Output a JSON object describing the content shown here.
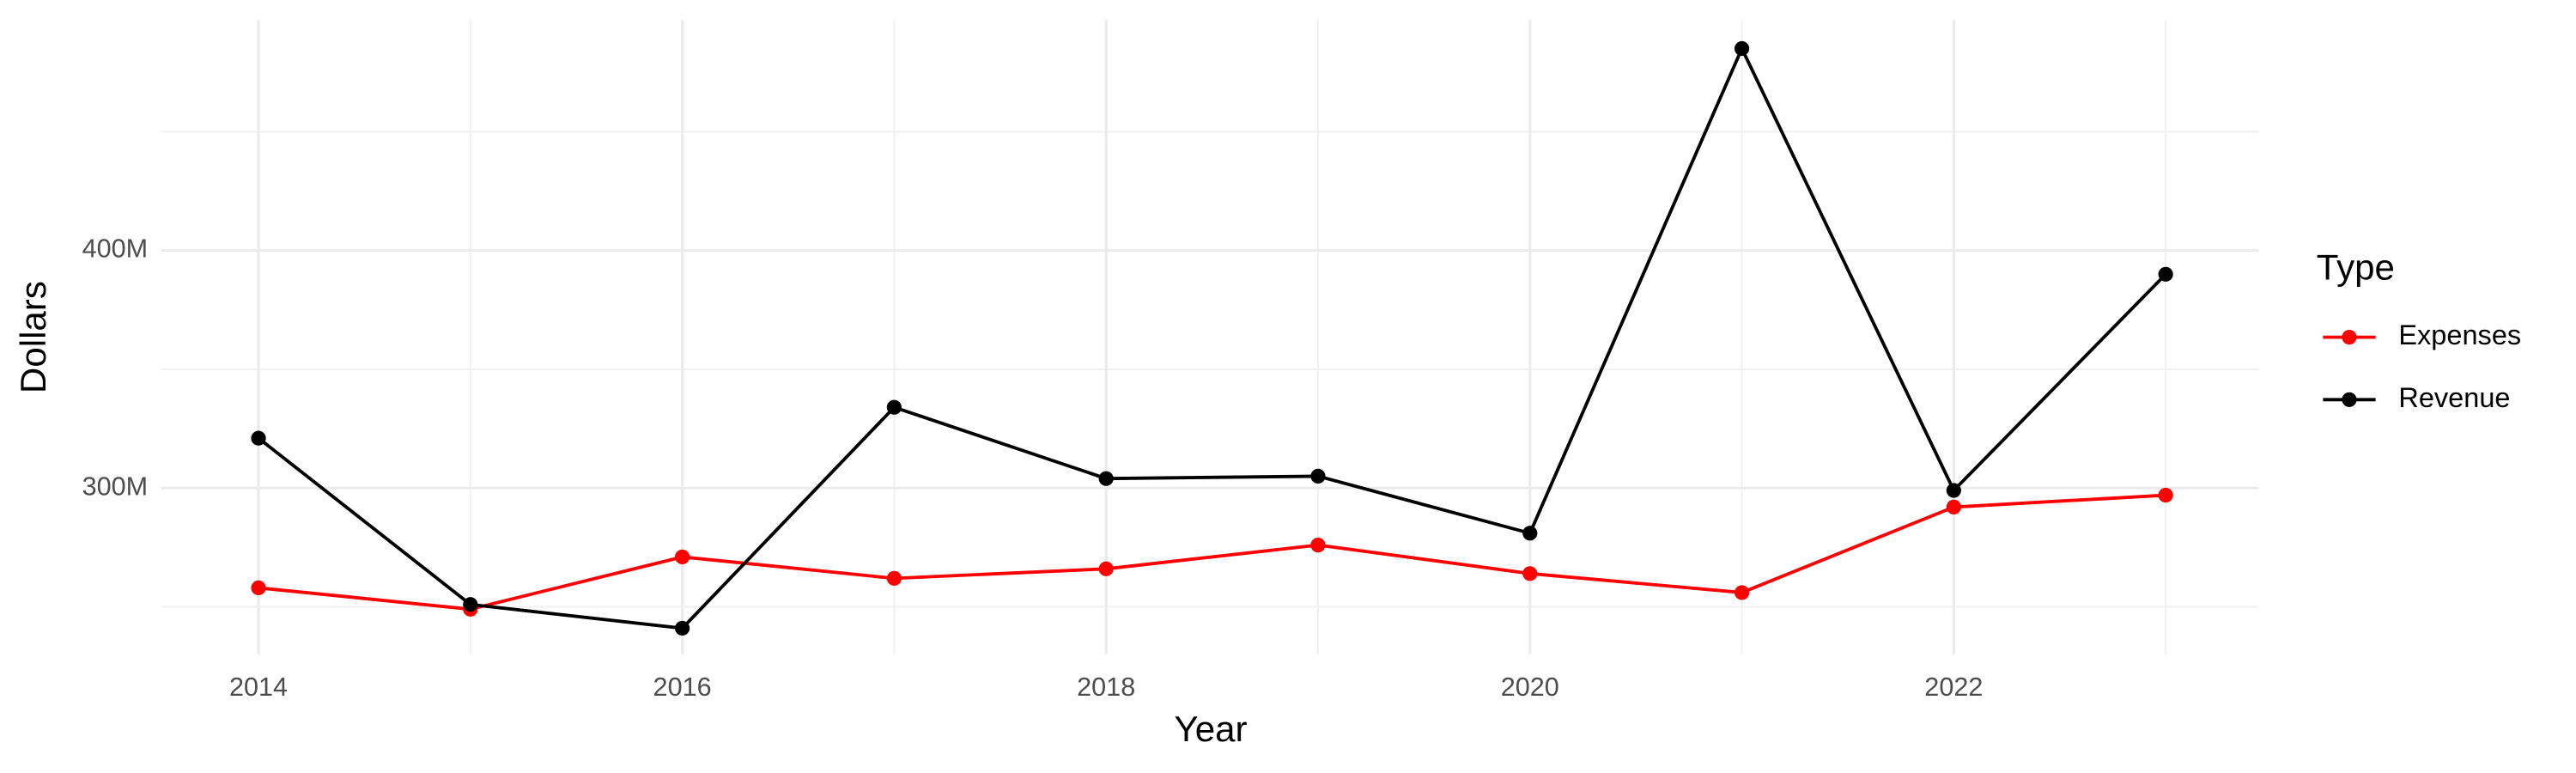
{
  "chart_data": {
    "type": "line",
    "x_label": "Year",
    "y_label": "Dollars",
    "legend_title": "Type",
    "x": [
      2014,
      2015,
      2016,
      2017,
      2018,
      2019,
      2020,
      2021,
      2022,
      2023
    ],
    "series": [
      {
        "name": "Expenses",
        "color": "#ff0000",
        "values": [
          258000000,
          249000000,
          271000000,
          262000000,
          266000000,
          276000000,
          264000000,
          256000000,
          292000000,
          297000000
        ]
      },
      {
        "name": "Revenue",
        "color": "#000000",
        "values": [
          321000000,
          251000000,
          241000000,
          334000000,
          304000000,
          305000000,
          281000000,
          485000000,
          299000000,
          390000000
        ]
      }
    ],
    "xlim": [
      2013.54,
      2023.44
    ],
    "xticks": [
      2014,
      2016,
      2018,
      2020,
      2022
    ],
    "ylim": [
      230000000,
      497000000
    ],
    "yticks": [
      {
        "value": 300000000,
        "label": "300M"
      },
      {
        "value": 400000000,
        "label": "400M"
      }
    ],
    "grid": true,
    "legend": "right"
  }
}
